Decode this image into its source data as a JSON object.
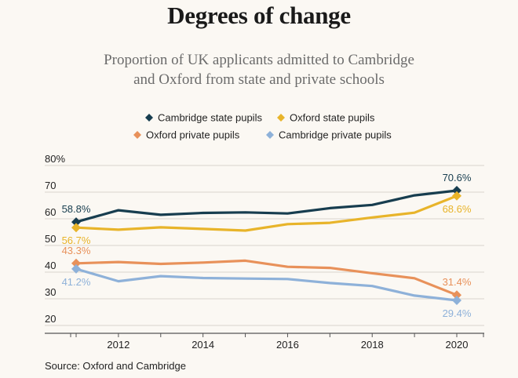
{
  "title": "Degrees of change",
  "subtitle_lines": [
    "Proportion of UK applicants admitted to Cambridge",
    "and Oxford from state and private schools"
  ],
  "source": "Source: Oxford and Cambridge",
  "chart_data": {
    "type": "line",
    "title": "Degrees of change",
    "subtitle": "Proportion of UK applicants admitted to Cambridge and Oxford from state and private schools",
    "xlabel": "",
    "ylabel": "",
    "x": [
      2011,
      2012,
      2013,
      2014,
      2015,
      2016,
      2017,
      2018,
      2019,
      2020
    ],
    "xlim": [
      2010.6,
      2020.7
    ],
    "ylim": [
      20,
      80
    ],
    "y_ticks": [
      {
        "value": 80,
        "label": "80%"
      },
      {
        "value": 70,
        "label": "70"
      },
      {
        "value": 60,
        "label": "60"
      },
      {
        "value": 50,
        "label": "50"
      },
      {
        "value": 40,
        "label": "40"
      },
      {
        "value": 30,
        "label": "30"
      },
      {
        "value": 20,
        "label": "20"
      }
    ],
    "x_ticks": [
      {
        "value": 2012,
        "label": "2012"
      },
      {
        "value": 2014,
        "label": "2014"
      },
      {
        "value": 2016,
        "label": "2016"
      },
      {
        "value": 2018,
        "label": "2018"
      },
      {
        "value": 2020,
        "label": "2020"
      }
    ],
    "grid": "horizontal",
    "legend_position": "top",
    "series": [
      {
        "name": "Cambridge state pupils",
        "color": "#173d4f",
        "values": [
          58.8,
          63.2,
          61.5,
          62.2,
          62.4,
          62.0,
          64.0,
          65.2,
          68.8,
          70.6
        ],
        "labels": [
          {
            "index": 0,
            "text": "58.8%",
            "position": "above"
          },
          {
            "index": 9,
            "text": "70.6%",
            "position": "above"
          }
        ]
      },
      {
        "name": "Oxford state pupils",
        "color": "#e8b42a",
        "values": [
          56.7,
          55.9,
          56.8,
          56.2,
          55.6,
          58.0,
          58.5,
          60.5,
          62.3,
          68.6
        ],
        "labels": [
          {
            "index": 0,
            "text": "56.7%",
            "position": "below"
          },
          {
            "index": 9,
            "text": "68.6%",
            "position": "below"
          }
        ]
      },
      {
        "name": "Oxford private pupils",
        "color": "#e8915a",
        "values": [
          43.3,
          43.8,
          43.1,
          43.6,
          44.3,
          42.0,
          41.6,
          39.6,
          37.7,
          31.4
        ],
        "labels": [
          {
            "index": 0,
            "text": "43.3%",
            "position": "above"
          },
          {
            "index": 9,
            "text": "31.4%",
            "position": "above"
          }
        ]
      },
      {
        "name": "Cambridge private pupils",
        "color": "#8eb1d9",
        "values": [
          41.2,
          36.6,
          38.5,
          37.8,
          37.6,
          37.4,
          35.9,
          34.8,
          31.2,
          29.4
        ],
        "labels": [
          {
            "index": 0,
            "text": "41.2%",
            "position": "below"
          },
          {
            "index": 9,
            "text": "29.4%",
            "position": "below"
          }
        ]
      }
    ]
  }
}
